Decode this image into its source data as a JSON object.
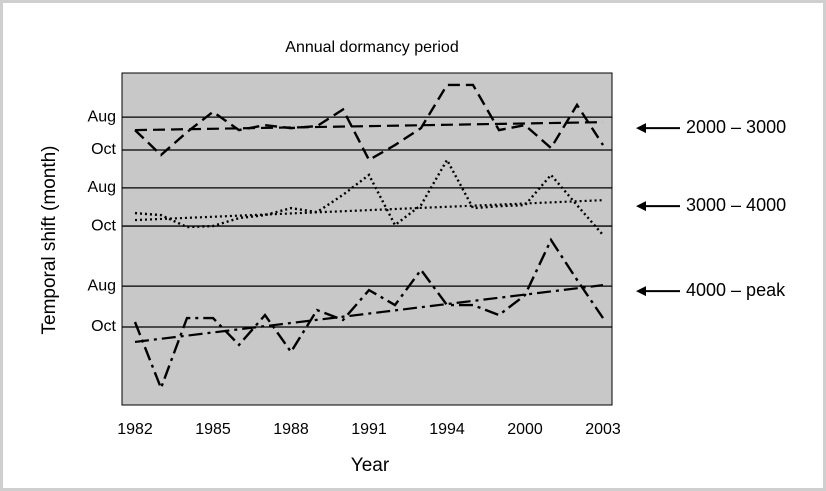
{
  "chart_data": {
    "type": "line",
    "title": "Annual dormancy period",
    "x_label": "Year",
    "y_label": "Temporal shift (month)",
    "categories": [
      "1982",
      null,
      null,
      "1985",
      null,
      null,
      "1988",
      null,
      null,
      "1991",
      null,
      null,
      "1994",
      null,
      null,
      "2000",
      null,
      null,
      "2003"
    ],
    "ylim": [
      0,
      100
    ],
    "yticks": [
      {
        "value": 86.7,
        "label": "Aug"
      },
      {
        "value": 76.8,
        "label": "Oct"
      },
      {
        "value": 65.4,
        "label": "Aug"
      },
      {
        "value": 53.9,
        "label": "Oct"
      },
      {
        "value": 35.8,
        "label": "Aug"
      },
      {
        "value": 23.5,
        "label": "Oct"
      }
    ],
    "grid": true,
    "background": "#c8c8c8",
    "series": [
      {
        "name": "2000 – 3000",
        "color": "#000000",
        "dash": "12,6",
        "values": [
          82.8,
          75.3,
          82.2,
          88.3,
          82.8,
          84.3,
          83.4,
          84.0,
          89.0,
          73.8,
          78.3,
          83.4,
          96.4,
          96.4,
          82.8,
          84.3,
          77.4,
          90.4,
          78.3
        ],
        "trend": [
          82.8,
          85.2
        ]
      },
      {
        "name": "3000 – 4000",
        "color": "#000000",
        "dash": "2,3",
        "values": [
          57.8,
          57.2,
          53.6,
          53.9,
          56.3,
          57.2,
          59.3,
          58.1,
          63.3,
          69.3,
          54.2,
          60.2,
          73.8,
          59.3,
          59.9,
          60.2,
          69.3,
          60.2,
          51.2
        ],
        "trend": [
          55.7,
          61.7
        ]
      },
      {
        "name": "4000 – peak",
        "color": "#000000",
        "dash": "14,5,3,5",
        "values": [
          25.0,
          5.1,
          26.2,
          26.2,
          18.1,
          27.1,
          16.0,
          28.6,
          25.6,
          34.6,
          30.1,
          40.7,
          30.1,
          30.1,
          27.1,
          33.1,
          49.7,
          37.7,
          26.2
        ],
        "trend": [
          19.0,
          36.1
        ]
      }
    ]
  }
}
